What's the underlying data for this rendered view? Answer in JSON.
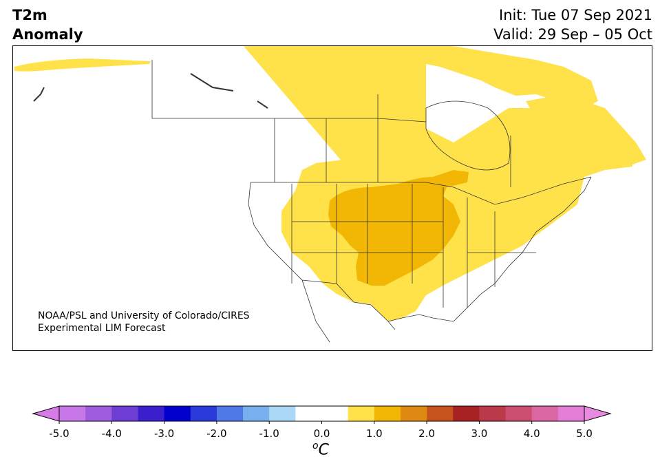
{
  "title": {
    "left_line1": "T2m",
    "left_line2": "Anomaly",
    "right_line1": "Init: Tue 07 Sep 2021",
    "right_line2": "Valid: 29 Sep – 05 Oct"
  },
  "credit": {
    "line1": "NOAA/PSL and University of Colorado/CIRES",
    "line2": "Experimental LIM Forecast"
  },
  "map": {
    "region": "North America",
    "variable": "2-meter temperature anomaly",
    "anomaly_areas": [
      {
        "level": "0.5 to 1.0",
        "color": "#FFE24A",
        "where": "Canadian Arctic, eastern Canada, Great Plains, Midwest, Southern Plains, Texas, Mid-Atlantic"
      },
      {
        "level": "1.0 to 1.5",
        "color": "#F2B705",
        "where": "Northern and Central Plains, Upper Midwest, Oklahoma, western Great Lakes"
      }
    ]
  },
  "colorbar": {
    "unit_base": "C",
    "unit_sup": "o",
    "ticks": [
      "-5.0",
      "-4.0",
      "-3.0",
      "-2.0",
      "-1.0",
      "0.0",
      "1.0",
      "2.0",
      "3.0",
      "4.0",
      "5.0"
    ],
    "colors": [
      "#C777E8",
      "#A05CDE",
      "#6E3DD4",
      "#3B1FCC",
      "#0000CC",
      "#2A3BDA",
      "#4F7AE6",
      "#78B0EE",
      "#AAD8F6",
      "#FFFFFF",
      "#FFFFFF",
      "#FFE24A",
      "#F2B705",
      "#DE8A12",
      "#C4541C",
      "#A72222",
      "#BB3A4A",
      "#CC4F72",
      "#DA67A4",
      "#E37ED6"
    ],
    "extend_low_color": "#D77BE6",
    "extend_high_color": "#E88BE0"
  }
}
